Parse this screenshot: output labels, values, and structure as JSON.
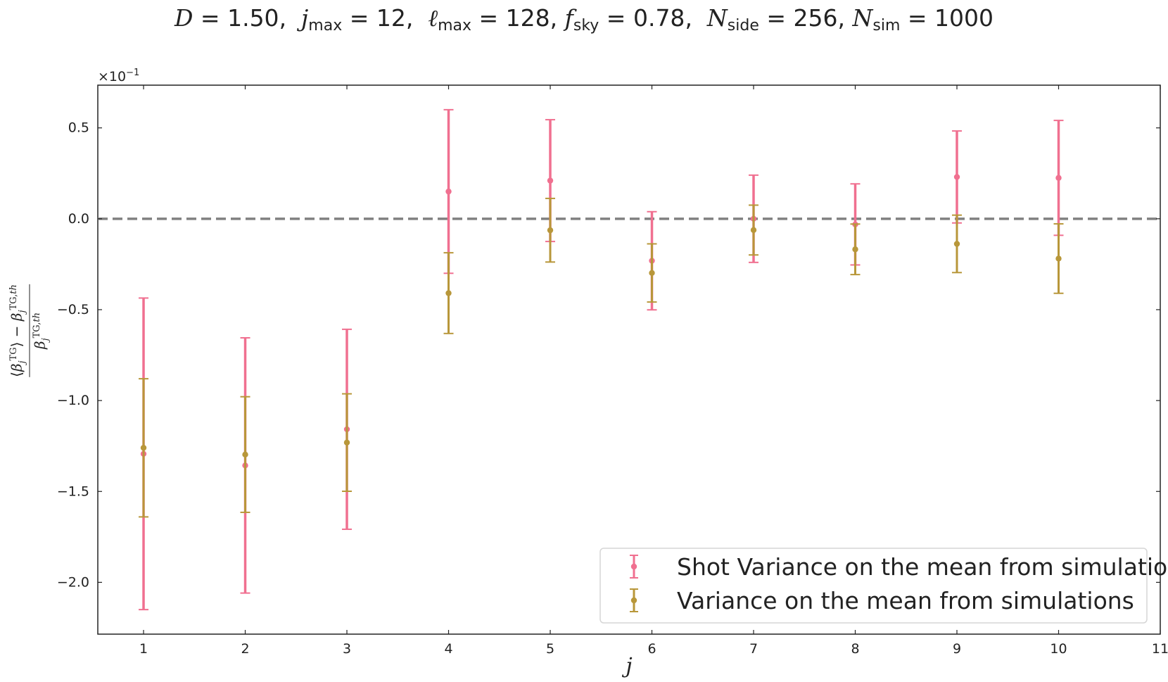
{
  "title": {
    "d_label": "D",
    "d_value": "1.50",
    "jmax_label": "j",
    "jmax_sub": "max",
    "jmax_value": "12",
    "lmax_label": "ℓ",
    "lmax_sub": "max",
    "lmax_value": "128",
    "fsky_label": "f",
    "fsky_sub": "sky",
    "fsky_value": "0.78",
    "nside_label": "N",
    "nside_sub": "side",
    "nside_value": "256",
    "nsim_label": "N",
    "nsim_sub": "sim",
    "nsim_value": "1000"
  },
  "axes": {
    "xlabel": "j",
    "ylabel_numerator": "⟨β_j^TG⟩ − β_j^TG,th",
    "ylabel_denominator": "β_j^TG,th",
    "y_offset_text": "×10",
    "y_offset_exponent": "−1"
  },
  "chart_data": {
    "type": "scatter",
    "title": "D = 1.50, jmax = 12, ℓmax = 128, fsky = 0.78, Nside = 256, Nsim = 1000",
    "xlabel": "j",
    "ylabel": "(⟨β_j^TG⟩ − β_j^TG,th) / β_j^TG,th",
    "xlim": [
      0.55,
      11
    ],
    "ylim": [
      -0.2285,
      0.0735
    ],
    "y_scale_factor": "×10^-1",
    "x_ticks": [
      1,
      2,
      3,
      4,
      5,
      6,
      7,
      8,
      9,
      10,
      11
    ],
    "y_ticks": [
      -0.2,
      -0.15,
      -0.1,
      -0.05,
      0.0,
      0.05
    ],
    "y_tick_labels": [
      "−2.0",
      "−1.5",
      "−1.0",
      "−0.5",
      "0.0",
      "0.5"
    ],
    "reference_line": {
      "y": 0,
      "style": "dashed",
      "color": "#808080"
    },
    "grid": false,
    "legend_position": "lower-right",
    "series": [
      {
        "name": "Shot Variance on the mean from simulations",
        "color": "#f07090",
        "x": [
          1,
          2,
          3,
          4,
          5,
          6,
          7,
          8,
          9,
          10
        ],
        "y": [
          -0.1293,
          -0.1357,
          -0.1158,
          0.015,
          0.021,
          -0.0231,
          0.0,
          -0.0031,
          0.023,
          0.0225
        ],
        "yerr": [
          0.0857,
          0.0702,
          0.055,
          0.045,
          0.0335,
          0.027,
          0.024,
          0.0223,
          0.0253,
          0.0316
        ]
      },
      {
        "name": "Variance on the mean from simulations",
        "color": "#b8973a",
        "x": [
          1,
          2,
          3,
          4,
          5,
          6,
          7,
          8,
          9,
          10
        ],
        "y": [
          -0.126,
          -0.1297,
          -0.1231,
          -0.0409,
          -0.0063,
          -0.0298,
          -0.0062,
          -0.0168,
          -0.0138,
          -0.0219
        ],
        "yerr": [
          0.038,
          0.0318,
          0.0268,
          0.0222,
          0.0175,
          0.016,
          0.0137,
          0.0139,
          0.0158,
          0.0191
        ]
      }
    ]
  }
}
